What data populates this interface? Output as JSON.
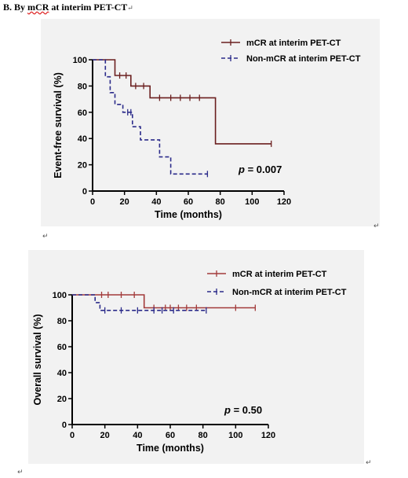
{
  "heading": {
    "label": "B.",
    "prefix": "By ",
    "underlined": "mCR",
    "rest": " at interim PET-CT",
    "mark": "↵"
  },
  "paragraph_marks": [
    "↵",
    "↵",
    "↵",
    "↵",
    "↵"
  ],
  "chart_data": [
    {
      "type": "line",
      "subtype": "kaplan-meier",
      "title": "",
      "xlabel": "Time (months)",
      "ylabel": "Event-free survival (%)",
      "xlim": [
        0,
        120
      ],
      "ylim": [
        0,
        100
      ],
      "xticks": [
        0,
        20,
        40,
        60,
        80,
        100,
        120
      ],
      "yticks": [
        0,
        20,
        40,
        60,
        80,
        100
      ],
      "annotation": {
        "p": "p",
        "rest": " = 0.007"
      },
      "legend_position": "top-right",
      "grid": false,
      "series": [
        {
          "name": "mCR at interim  PET-CT",
          "color": "#6b1f1f",
          "dash": "solid",
          "steps": [
            [
              0,
              100
            ],
            [
              14,
              100
            ],
            [
              14,
              88
            ],
            [
              24,
              88
            ],
            [
              24,
              80
            ],
            [
              36,
              80
            ],
            [
              36,
              71
            ],
            [
              77,
              71
            ],
            [
              77,
              36
            ],
            [
              112,
              36
            ]
          ],
          "censor": [
            [
              17,
              88
            ],
            [
              21,
              88
            ],
            [
              27,
              80
            ],
            [
              32,
              80
            ],
            [
              42,
              71
            ],
            [
              49,
              71
            ],
            [
              55,
              71
            ],
            [
              61,
              71
            ],
            [
              67,
              71
            ],
            [
              112,
              36
            ]
          ]
        },
        {
          "name": "Non-mCR at interim PET-CT",
          "color": "#2b2b8a",
          "dash": "dashed",
          "steps": [
            [
              0,
              100
            ],
            [
              8,
              100
            ],
            [
              8,
              87
            ],
            [
              11,
              87
            ],
            [
              11,
              75
            ],
            [
              14,
              75
            ],
            [
              14,
              66
            ],
            [
              19,
              66
            ],
            [
              19,
              60
            ],
            [
              25,
              60
            ],
            [
              25,
              49
            ],
            [
              30,
              49
            ],
            [
              30,
              39
            ],
            [
              42,
              39
            ],
            [
              42,
              26
            ],
            [
              49,
              26
            ],
            [
              49,
              13
            ],
            [
              72,
              13
            ]
          ],
          "censor": [
            [
              22,
              60
            ],
            [
              24,
              60
            ],
            [
              72,
              13
            ]
          ]
        }
      ]
    },
    {
      "type": "line",
      "subtype": "kaplan-meier",
      "title": "",
      "xlabel": "Time (months)",
      "ylabel": "Overall survival (%)",
      "xlim": [
        0,
        120
      ],
      "ylim": [
        0,
        100
      ],
      "xticks": [
        0,
        20,
        40,
        60,
        80,
        100,
        120
      ],
      "yticks": [
        0,
        20,
        40,
        60,
        80,
        100
      ],
      "annotation": {
        "p": "p",
        "rest": " = 0.50"
      },
      "legend_position": "top-right",
      "grid": false,
      "series": [
        {
          "name": "mCR at interim  PET-CT",
          "color": "#a23a3a",
          "dash": "solid",
          "steps": [
            [
              0,
              100
            ],
            [
              44,
              100
            ],
            [
              44,
              90
            ],
            [
              112,
              90
            ]
          ],
          "censor": [
            [
              18,
              100
            ],
            [
              22,
              100
            ],
            [
              30,
              100
            ],
            [
              38,
              100
            ],
            [
              50,
              90
            ],
            [
              57,
              90
            ],
            [
              60,
              90
            ],
            [
              65,
              90
            ],
            [
              70,
              90
            ],
            [
              76,
              90
            ],
            [
              100,
              90
            ],
            [
              112,
              90
            ]
          ]
        },
        {
          "name": "Non-mCR at interim PET-CT",
          "color": "#2b2b8a",
          "dash": "dashed",
          "steps": [
            [
              0,
              100
            ],
            [
              14,
              100
            ],
            [
              14,
              94
            ],
            [
              17,
              94
            ],
            [
              17,
              88
            ],
            [
              82,
              88
            ]
          ],
          "censor": [
            [
              20,
              88
            ],
            [
              30,
              88
            ],
            [
              40,
              88
            ],
            [
              50,
              88
            ],
            [
              55,
              88
            ],
            [
              62,
              88
            ],
            [
              82,
              88
            ]
          ]
        }
      ]
    }
  ]
}
